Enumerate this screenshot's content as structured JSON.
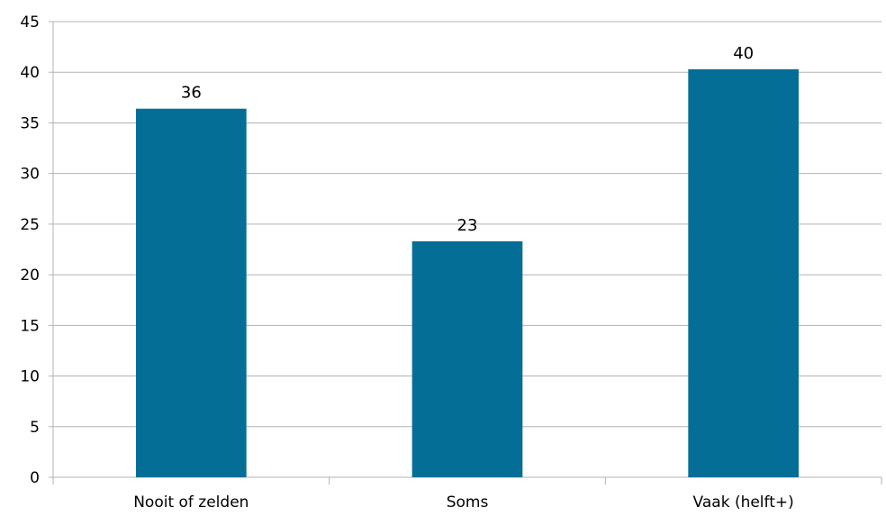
{
  "chart_data": {
    "type": "bar",
    "title": "",
    "xlabel": "",
    "ylabel": "",
    "categories": [
      "Nooit of zelden",
      "Soms",
      "Vaak (helft+)"
    ],
    "values": [
      36.4,
      23.3,
      40.3
    ],
    "data_labels": [
      "36",
      "23",
      "40"
    ],
    "ylim": [
      0,
      45
    ],
    "yticks": [
      0,
      5,
      10,
      15,
      20,
      25,
      30,
      35,
      40,
      45
    ],
    "ytick_labels": [
      "0",
      "5",
      "10",
      "15",
      "20",
      "25",
      "30",
      "35",
      "40",
      "45"
    ],
    "grid": true,
    "legend": "none",
    "colors": {
      "bar": "#056e96",
      "grid": "#b3b3b3",
      "axis": "#b3b3b3"
    }
  }
}
